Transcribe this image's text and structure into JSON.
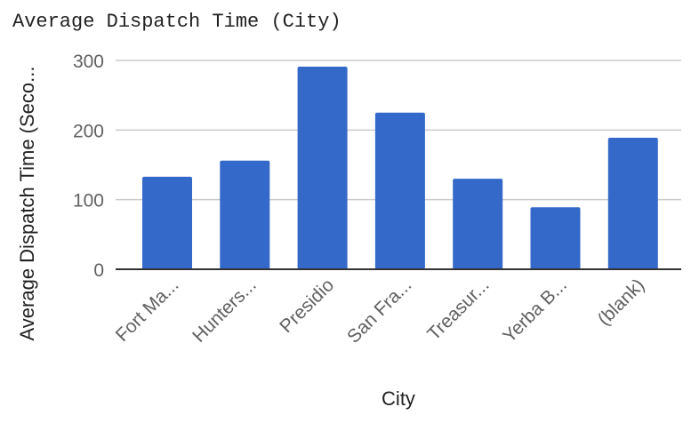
{
  "chart_data": {
    "type": "bar",
    "title": "Average Dispatch Time (City)",
    "xlabel": "City",
    "ylabel": "Average Dispatch Time (Seco...",
    "categories": [
      "Fort Ma...",
      "Hunters...",
      "Presidio",
      "San Fra...",
      "Treasur...",
      "Yerba B...",
      "(blank)"
    ],
    "values": [
      133,
      156,
      291,
      225,
      130,
      89,
      189
    ],
    "ylim": [
      0,
      300
    ],
    "yticks": [
      0,
      100,
      200,
      300
    ],
    "grid": true,
    "legend": "none",
    "bar_color": "#3569c9"
  },
  "colors": {
    "gridline": "#cccccc",
    "baseline": "#333333",
    "tick_text": "#616161",
    "title_text": "#222222"
  }
}
